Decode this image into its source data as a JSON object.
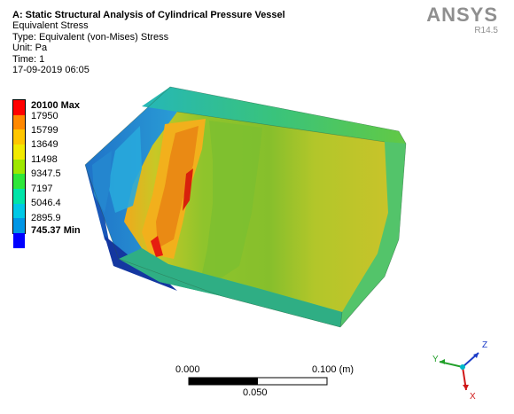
{
  "header": {
    "title": "A: Static Structural Analysis of Cylindrical Pressure Vessel",
    "lines": [
      "Equivalent Stress",
      "Type: Equivalent (von-Mises) Stress",
      "Unit: Pa",
      "Time: 1",
      "17-09-2019 06:05"
    ]
  },
  "logo": {
    "brand": "ANSYS",
    "release": "R14.5"
  },
  "legend": {
    "colors": [
      "#ff0000",
      "#ff8800",
      "#ffc600",
      "#f2ea00",
      "#9ee800",
      "#2ee83a",
      "#00e4a8",
      "#00c8e6",
      "#0096e6",
      "#0000ff"
    ],
    "labels": [
      "20100 Max",
      "17950",
      "15799",
      "13649",
      "11498",
      "9347.5",
      "7197",
      "5046.4",
      "2895.9",
      "745.37 Min"
    ]
  },
  "scale": {
    "left": "0.000",
    "right": "0.100 (m)",
    "mid": "0.050"
  },
  "triad": {
    "x": "X",
    "y": "Y",
    "z": "Z"
  }
}
